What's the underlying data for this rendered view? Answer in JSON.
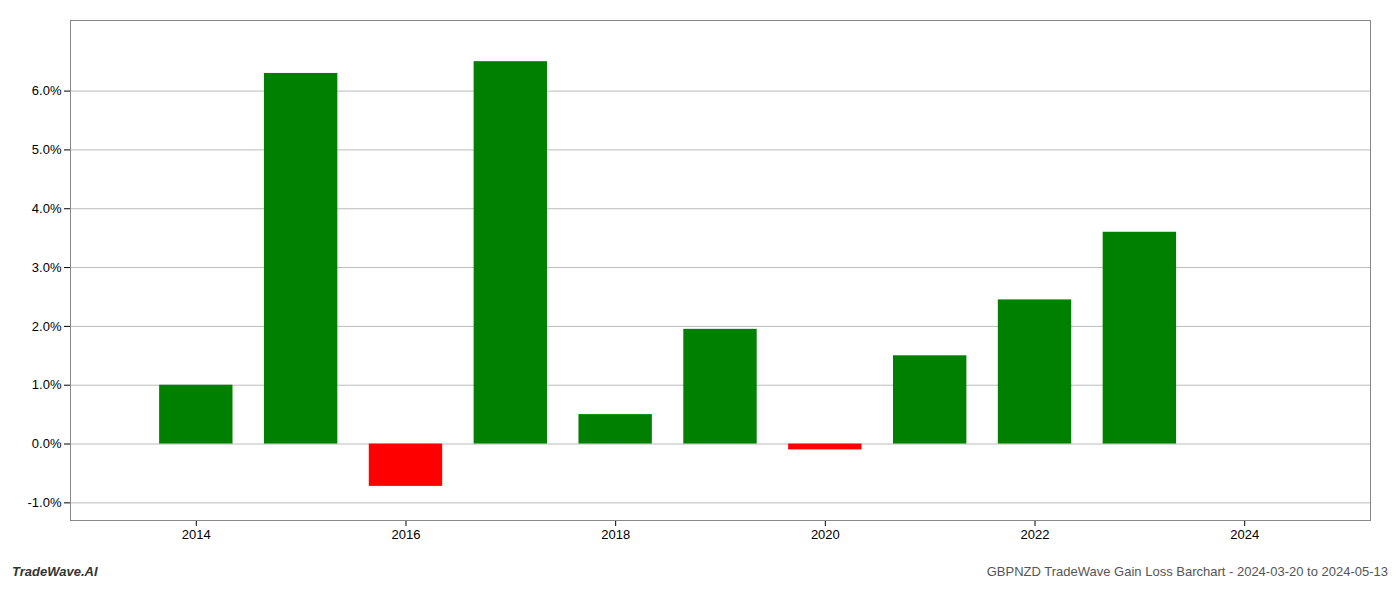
{
  "chart_data": {
    "type": "bar",
    "x": [
      2014,
      2015,
      2016,
      2017,
      2018,
      2019,
      2020,
      2021,
      2022,
      2023
    ],
    "values": [
      0.01,
      0.063,
      -0.0072,
      0.065,
      0.005,
      0.0195,
      -0.001,
      0.015,
      0.0245,
      0.036
    ],
    "colors": [
      "#008000",
      "#008000",
      "#ff0000",
      "#008000",
      "#008000",
      "#008000",
      "#ff0000",
      "#008000",
      "#008000",
      "#008000"
    ],
    "xlim": [
      2012.8,
      2025.2
    ],
    "xticks": [
      2014,
      2016,
      2018,
      2020,
      2022,
      2024
    ],
    "ylim": [
      -0.013,
      0.072
    ],
    "yticks": [
      {
        "value": -0.01,
        "label": "-1.0%"
      },
      {
        "value": 0.0,
        "label": "0.0%"
      },
      {
        "value": 0.01,
        "label": "1.0%"
      },
      {
        "value": 0.02,
        "label": "2.0%"
      },
      {
        "value": 0.03,
        "label": "3.0%"
      },
      {
        "value": 0.04,
        "label": "4.0%"
      },
      {
        "value": 0.05,
        "label": "5.0%"
      },
      {
        "value": 0.06,
        "label": "6.0%"
      }
    ],
    "grid": true,
    "annotations": [
      "TradeWave.AI",
      "GBPNZD TradeWave Gain Loss Barchart - 2024-03-20 to 2024-05-13"
    ]
  }
}
